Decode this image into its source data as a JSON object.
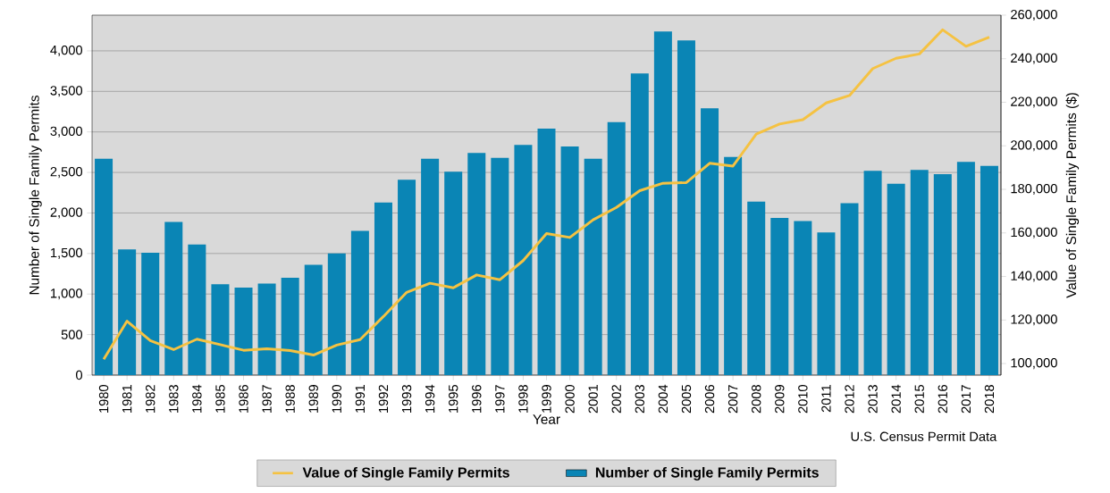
{
  "chart_data": {
    "type": "bar",
    "xlabel": "Year",
    "ylabel": "Number of Single Family Permits",
    "y2label": "Value of Single Family Permits ($)",
    "categories": [
      "1980",
      "1981",
      "1982",
      "1983",
      "1984",
      "1985",
      "1986",
      "1987",
      "1988",
      "1989",
      "1990",
      "1991",
      "1992",
      "1993",
      "1994",
      "1995",
      "1996",
      "1997",
      "1998",
      "1999",
      "2000",
      "2001",
      "2002",
      "2003",
      "2004",
      "2005",
      "2006",
      "2007",
      "2008",
      "2009",
      "2010",
      "2011",
      "2012",
      "2013",
      "2014",
      "2015",
      "2016",
      "2017",
      "2018"
    ],
    "series": [
      {
        "name": "Number of Single Family Permits",
        "color": "#0a85b5",
        "values": [
          2670,
          1550,
          1510,
          1890,
          1610,
          1120,
          1080,
          1130,
          1200,
          1360,
          1500,
          1780,
          2130,
          2410,
          2670,
          2510,
          2740,
          2680,
          2840,
          3040,
          2820,
          2670,
          3120,
          3720,
          4240,
          4130,
          3290,
          2690,
          2140,
          1940,
          1900,
          1760,
          2120,
          2520,
          2360,
          2530,
          2480,
          2630,
          2580
        ]
      },
      {
        "name": "Value of Single Family Permits",
        "type": "line",
        "axis": "y2",
        "color": "#f5c242",
        "values": [
          102000,
          119500,
          110500,
          106400,
          111200,
          108700,
          106100,
          106800,
          106000,
          103900,
          108500,
          111000,
          121600,
          132700,
          136900,
          134800,
          140700,
          138500,
          147300,
          159700,
          157900,
          166000,
          171700,
          179400,
          182800,
          183100,
          192000,
          190700,
          205400,
          210000,
          212000,
          219700,
          223100,
          235500,
          240200,
          242200,
          253300,
          245700,
          249900
        ]
      }
    ],
    "ylim": [
      0,
      4440
    ],
    "yticks": [
      0,
      500,
      {
        "value": 1000,
        "label": "1,000"
      },
      {
        "value": 1500,
        "label": "1,500"
      },
      {
        "value": 2000,
        "label": "2,000"
      },
      {
        "value": 2500,
        "label": "2,500"
      },
      {
        "value": 3000,
        "label": "3,000"
      },
      {
        "value": 3500,
        "label": "3,500"
      },
      {
        "value": 4000,
        "label": "4,000"
      }
    ],
    "y2lim": [
      94700,
      260000
    ],
    "y2ticks": [
      {
        "value": 100000,
        "label": "100,000"
      },
      {
        "value": 120000,
        "label": "120,000"
      },
      {
        "value": 140000,
        "label": "140,000"
      },
      {
        "value": 160000,
        "label": "160,000"
      },
      {
        "value": 180000,
        "label": "180,000"
      },
      {
        "value": 200000,
        "label": "200,000"
      },
      {
        "value": 220000,
        "label": "220,000"
      },
      {
        "value": 240000,
        "label": "240,000"
      },
      {
        "value": 260000,
        "label": "260,000"
      }
    ],
    "grid": "y",
    "legend": "bottom",
    "annotations": [
      "U.S. Census Permit Data"
    ]
  }
}
